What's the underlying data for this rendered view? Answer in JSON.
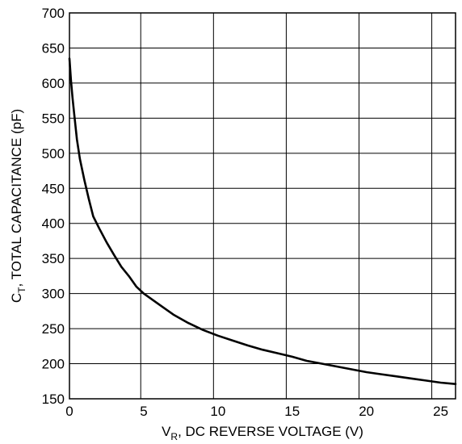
{
  "chart_data": {
    "type": "line",
    "title": "",
    "xlabel": {
      "main": "V",
      "sub": "R",
      "rest": ", DC REVERSE VOLTAGE (V)"
    },
    "ylabel": {
      "main": "C",
      "sub": "T",
      "rest": ", TOTAL CAPACITANCE (pF)"
    },
    "xlim": [
      0,
      26
    ],
    "ylim": [
      150,
      700
    ],
    "xticks": [
      0,
      5,
      10,
      15,
      20,
      25
    ],
    "yticks": [
      150,
      200,
      250,
      300,
      350,
      400,
      450,
      500,
      550,
      600,
      650,
      700
    ],
    "xgrid": [
      0,
      4.8,
      9.7,
      14.6,
      19.5,
      24.4
    ],
    "grid": true,
    "series": [
      {
        "name": "",
        "x": [
          0,
          0.1,
          0.2,
          0.3,
          0.5,
          0.7,
          1.0,
          1.3,
          1.6,
          2.0,
          2.5,
          3.0,
          3.5,
          4.0,
          4.5,
          5.0,
          6.0,
          7.0,
          8.0,
          9.0,
          10.0,
          11.0,
          12.0,
          13.0,
          14.0,
          15.0,
          16.0,
          17.0,
          18.0,
          19.0,
          20.0,
          21.0,
          22.0,
          23.0,
          24.0,
          25.0,
          26.0
        ],
        "y": [
          635,
          605,
          580,
          560,
          520,
          492,
          462,
          435,
          410,
          393,
          373,
          355,
          338,
          325,
          310,
          300,
          285,
          270,
          258,
          248,
          240,
          233,
          226,
          220,
          215,
          210,
          204,
          200,
          196,
          192,
          188,
          185,
          182,
          179,
          176,
          173,
          171
        ]
      }
    ]
  }
}
